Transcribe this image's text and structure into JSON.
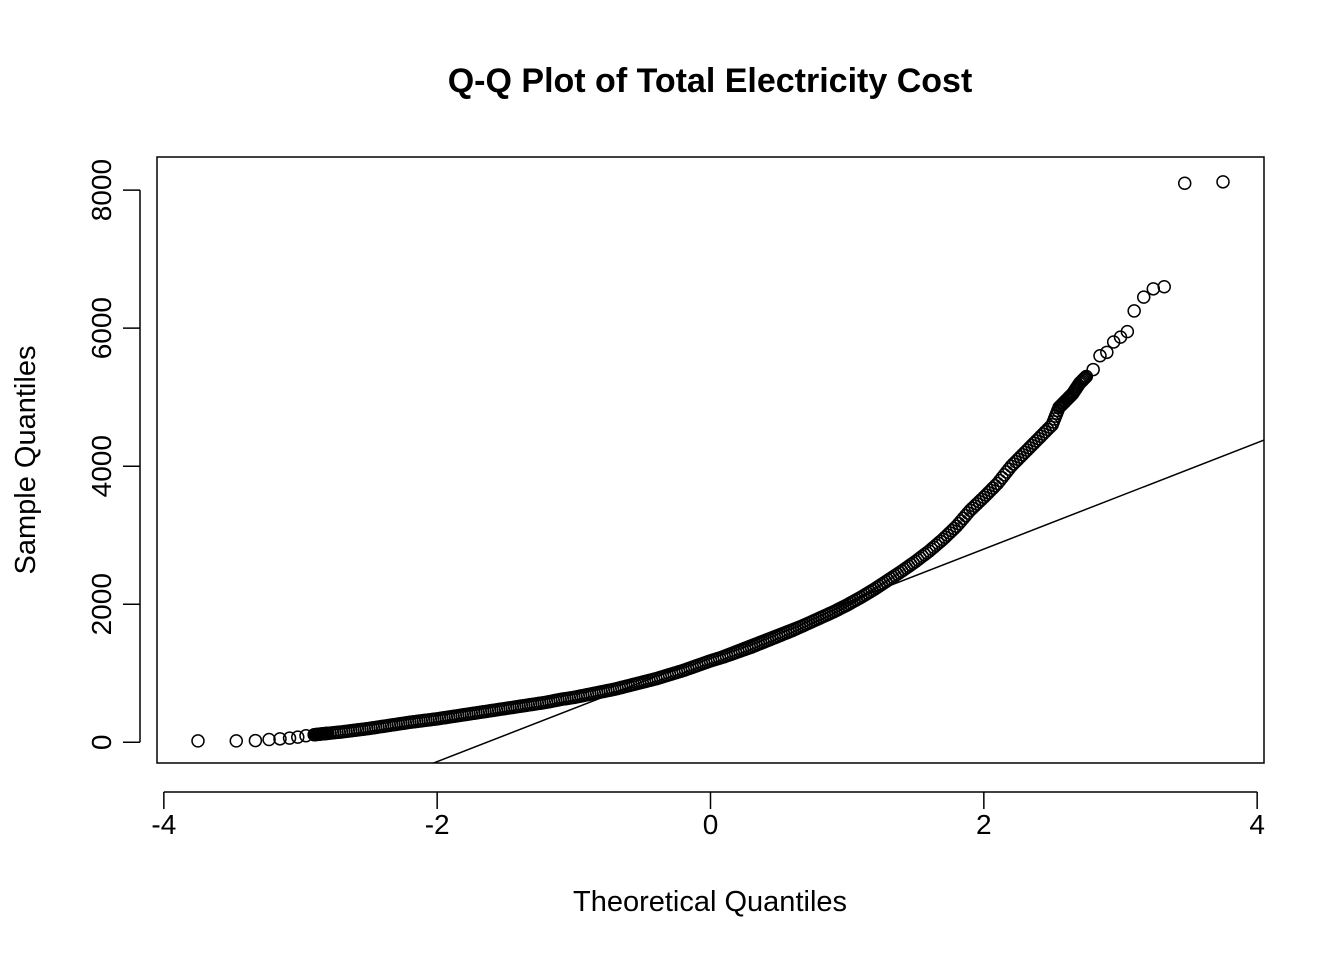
{
  "chart_data": {
    "type": "scatter",
    "title": "Q-Q Plot of Total Electricity Cost",
    "xlabel": "Theoretical Quantiles",
    "ylabel": "Sample Quantiles",
    "xlim": [
      -4.05,
      4.05
    ],
    "ylim": [
      -300,
      8480
    ],
    "x_ticks": [
      -4,
      -2,
      0,
      2,
      4
    ],
    "x_tick_labels": [
      "-4",
      "-2",
      "0",
      "2",
      "4"
    ],
    "y_ticks": [
      0,
      2000,
      4000,
      6000,
      8000
    ],
    "y_tick_labels": [
      "0",
      "2000",
      "4000",
      "6000",
      "8000"
    ],
    "grid": false,
    "legend": "none",
    "reference_line": {
      "intercept": 1260,
      "slope": 770
    },
    "series": [
      {
        "marker": "open-circle",
        "points": [
          [
            -3.75,
            20
          ],
          [
            -3.47,
            20
          ],
          [
            -3.33,
            25
          ],
          [
            -3.23,
            40
          ],
          [
            -3.15,
            50
          ],
          [
            -3.08,
            60
          ],
          [
            -3.02,
            75
          ],
          [
            -2.96,
            95
          ],
          [
            -2.9,
            110
          ],
          [
            -2.85,
            120
          ],
          [
            -2.8,
            130
          ],
          [
            -2.7,
            150
          ],
          [
            -2.6,
            175
          ],
          [
            -2.5,
            200
          ],
          [
            -2.4,
            230
          ],
          [
            -2.3,
            260
          ],
          [
            -2.2,
            290
          ],
          [
            -2.1,
            315
          ],
          [
            -2.0,
            340
          ],
          [
            -1.9,
            370
          ],
          [
            -1.8,
            400
          ],
          [
            -1.7,
            430
          ],
          [
            -1.6,
            460
          ],
          [
            -1.5,
            490
          ],
          [
            -1.4,
            520
          ],
          [
            -1.3,
            550
          ],
          [
            -1.2,
            580
          ],
          [
            -1.1,
            620
          ],
          [
            -1.0,
            650
          ],
          [
            -0.9,
            690
          ],
          [
            -0.8,
            730
          ],
          [
            -0.7,
            770
          ],
          [
            -0.6,
            820
          ],
          [
            -0.5,
            870
          ],
          [
            -0.4,
            920
          ],
          [
            -0.3,
            980
          ],
          [
            -0.2,
            1040
          ],
          [
            -0.1,
            1110
          ],
          [
            0.0,
            1180
          ],
          [
            0.1,
            1240
          ],
          [
            0.2,
            1310
          ],
          [
            0.3,
            1380
          ],
          [
            0.4,
            1460
          ],
          [
            0.5,
            1540
          ],
          [
            0.6,
            1620
          ],
          [
            0.7,
            1710
          ],
          [
            0.8,
            1800
          ],
          [
            0.9,
            1890
          ],
          [
            1.0,
            1990
          ],
          [
            1.1,
            2100
          ],
          [
            1.2,
            2220
          ],
          [
            1.3,
            2350
          ],
          [
            1.4,
            2480
          ],
          [
            1.5,
            2620
          ],
          [
            1.6,
            2770
          ],
          [
            1.7,
            2940
          ],
          [
            1.8,
            3130
          ],
          [
            1.9,
            3360
          ],
          [
            2.0,
            3550
          ],
          [
            2.1,
            3750
          ],
          [
            2.2,
            4000
          ],
          [
            2.3,
            4200
          ],
          [
            2.4,
            4400
          ],
          [
            2.5,
            4600
          ],
          [
            2.55,
            4850
          ],
          [
            2.6,
            4950
          ],
          [
            2.65,
            5050
          ],
          [
            2.7,
            5200
          ],
          [
            2.75,
            5300
          ],
          [
            2.8,
            5400
          ],
          [
            2.85,
            5600
          ],
          [
            2.9,
            5650
          ],
          [
            2.95,
            5800
          ],
          [
            3.0,
            5870
          ],
          [
            3.05,
            5950
          ],
          [
            3.1,
            6250
          ],
          [
            3.17,
            6450
          ],
          [
            3.24,
            6570
          ],
          [
            3.32,
            6600
          ],
          [
            3.47,
            8100
          ],
          [
            3.75,
            8120
          ]
        ]
      }
    ]
  }
}
